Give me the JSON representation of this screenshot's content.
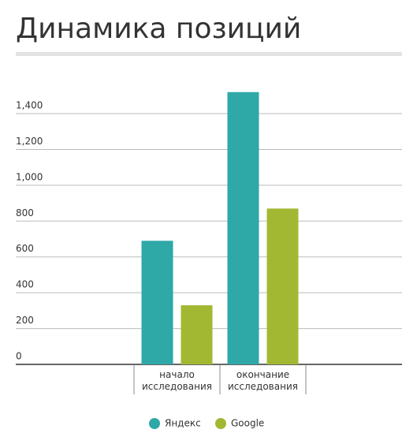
{
  "chart_data": {
    "type": "bar",
    "title": "Динамика позиций",
    "categories": [
      "начало исследования",
      "окончание исследования"
    ],
    "series": [
      {
        "name": "Яндекс",
        "color": "#2fa8a8",
        "values": [
          690,
          1520
        ]
      },
      {
        "name": "Google",
        "color": "#a3b832",
        "values": [
          330,
          870
        ]
      }
    ],
    "ylim": [
      0,
      1600
    ],
    "yticks": [
      0,
      200,
      400,
      600,
      800,
      {
        "value": 1000,
        "label": "1,000"
      },
      {
        "value": 1200,
        "label": "1,200"
      },
      {
        "value": 1400,
        "label": "1,400"
      }
    ],
    "grid": true,
    "legend": "bottom"
  }
}
